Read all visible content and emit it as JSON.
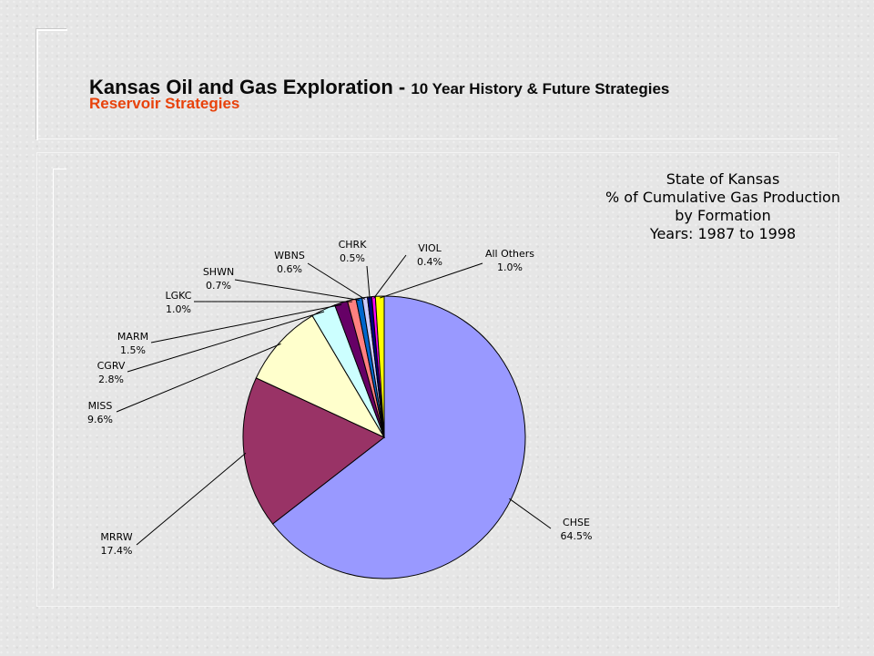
{
  "slide": {
    "title_main": "Kansas Oil and Gas Exploration - ",
    "title_sub": "10 Year History & Future Strategies",
    "subtitle": "Reservoir Strategies"
  },
  "chart_data": {
    "type": "pie",
    "title_lines": [
      "State of Kansas",
      "% of Cumulative Gas Production",
      "by Formation",
      "Years: 1987 to 1998"
    ],
    "slices": [
      {
        "label": "CHSE",
        "value": 64.5,
        "display": "64.5%",
        "color": "#9999ff"
      },
      {
        "label": "MRRW",
        "value": 17.4,
        "display": "17.4%",
        "color": "#993366"
      },
      {
        "label": "MISS",
        "value": 9.6,
        "display": "9.6%",
        "color": "#ffffcc"
      },
      {
        "label": "CGRV",
        "value": 2.8,
        "display": "2.8%",
        "color": "#ccffff"
      },
      {
        "label": "MARM",
        "value": 1.5,
        "display": "1.5%",
        "color": "#660066"
      },
      {
        "label": "LGKC",
        "value": 1.0,
        "display": "1.0%",
        "color": "#ff8080"
      },
      {
        "label": "SHWN",
        "value": 0.7,
        "display": "0.7%",
        "color": "#0066cc"
      },
      {
        "label": "WBNS",
        "value": 0.6,
        "display": "0.6%",
        "color": "#ccccff"
      },
      {
        "label": "CHRK",
        "value": 0.5,
        "display": "0.5%",
        "color": "#000080"
      },
      {
        "label": "VIOL",
        "value": 0.4,
        "display": "0.4%",
        "color": "#ff00ff"
      },
      {
        "label": "All Others",
        "value": 1.0,
        "display": "1.0%",
        "color": "#ffff00"
      }
    ]
  }
}
